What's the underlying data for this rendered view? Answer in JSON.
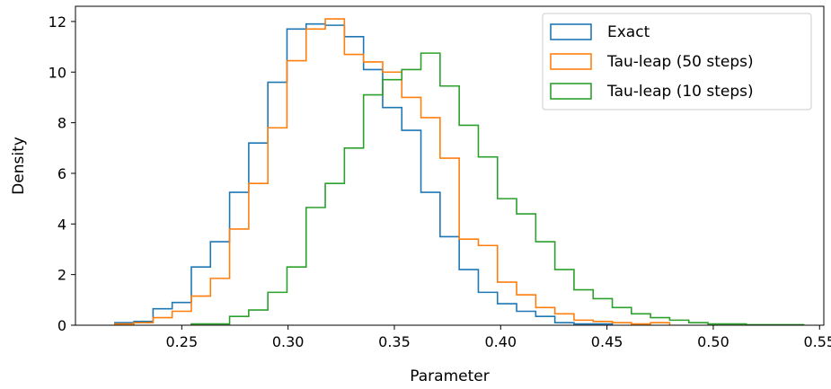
{
  "chart_data": {
    "type": "histogram",
    "xlabel": "Parameter",
    "ylabel": "Density",
    "xlim": [
      0.2,
      0.552
    ],
    "ylim": [
      0,
      12.6
    ],
    "xticks": [
      0.25,
      0.3,
      0.35,
      0.4,
      0.45,
      0.5,
      0.55
    ],
    "xtick_labels": [
      "0.25",
      "0.30",
      "0.35",
      "0.40",
      "0.45",
      "0.50",
      "0.55"
    ],
    "yticks": [
      0,
      2,
      4,
      6,
      8,
      10,
      12
    ],
    "ytick_labels": [
      "0",
      "2",
      "4",
      "6",
      "8",
      "10",
      "12"
    ],
    "grid": false,
    "legend_position": "top-right",
    "series": [
      {
        "name": "Exact",
        "color": "#1f77b4",
        "bin_edges": [
          0.2185,
          0.2275,
          0.2365,
          0.2455,
          0.2545,
          0.2635,
          0.2725,
          0.2815,
          0.2905,
          0.2995,
          0.3085,
          0.3175,
          0.3265,
          0.3355,
          0.3445,
          0.3535,
          0.3625,
          0.3715,
          0.3805,
          0.3895,
          0.3985,
          0.4075,
          0.4165,
          0.4255,
          0.4345,
          0.4435,
          0.4525
        ],
        "values": [
          0.1,
          0.15,
          0.65,
          0.9,
          2.3,
          3.3,
          5.25,
          7.2,
          9.6,
          11.7,
          11.9,
          11.85,
          11.4,
          10.1,
          8.6,
          7.7,
          5.25,
          3.5,
          2.2,
          1.3,
          0.85,
          0.55,
          0.35,
          0.1,
          0.05,
          0.05
        ]
      },
      {
        "name": "Tau-leap (50 steps)",
        "color": "#ff7f0e",
        "bin_edges": [
          0.2185,
          0.2275,
          0.2365,
          0.2455,
          0.2545,
          0.2635,
          0.2725,
          0.2815,
          0.2905,
          0.2995,
          0.3085,
          0.3175,
          0.3265,
          0.3355,
          0.3445,
          0.3535,
          0.3625,
          0.3715,
          0.3805,
          0.3895,
          0.3985,
          0.4075,
          0.4165,
          0.4255,
          0.4345,
          0.4435,
          0.4525,
          0.4615,
          0.4705,
          0.4795
        ],
        "values": [
          0.05,
          0.1,
          0.3,
          0.55,
          1.15,
          1.85,
          3.8,
          5.6,
          7.8,
          10.45,
          11.7,
          12.1,
          10.7,
          10.4,
          10.0,
          9.0,
          8.2,
          6.6,
          3.4,
          3.15,
          1.7,
          1.2,
          0.7,
          0.45,
          0.2,
          0.15,
          0.1,
          0.05,
          0.1
        ]
      },
      {
        "name": "Tau-leap (10 steps)",
        "color": "#2ca02c",
        "bin_edges": [
          0.2545,
          0.2635,
          0.2725,
          0.2815,
          0.2905,
          0.2995,
          0.3085,
          0.3175,
          0.3265,
          0.3355,
          0.3445,
          0.3535,
          0.3625,
          0.3715,
          0.3805,
          0.3895,
          0.3985,
          0.4075,
          0.4165,
          0.4255,
          0.4345,
          0.4435,
          0.4525,
          0.4615,
          0.4705,
          0.4795,
          0.4885,
          0.4975,
          0.5065,
          0.5155,
          0.5245,
          0.5335,
          0.5425
        ],
        "values": [
          0.05,
          0.05,
          0.35,
          0.6,
          1.3,
          2.3,
          4.65,
          5.6,
          7.0,
          9.1,
          9.7,
          10.1,
          10.75,
          9.45,
          7.9,
          6.65,
          5.0,
          4.4,
          3.3,
          2.2,
          1.4,
          1.05,
          0.7,
          0.45,
          0.3,
          0.2,
          0.1,
          0.05,
          0.05,
          0.02,
          0.02,
          0.02
        ]
      }
    ]
  }
}
